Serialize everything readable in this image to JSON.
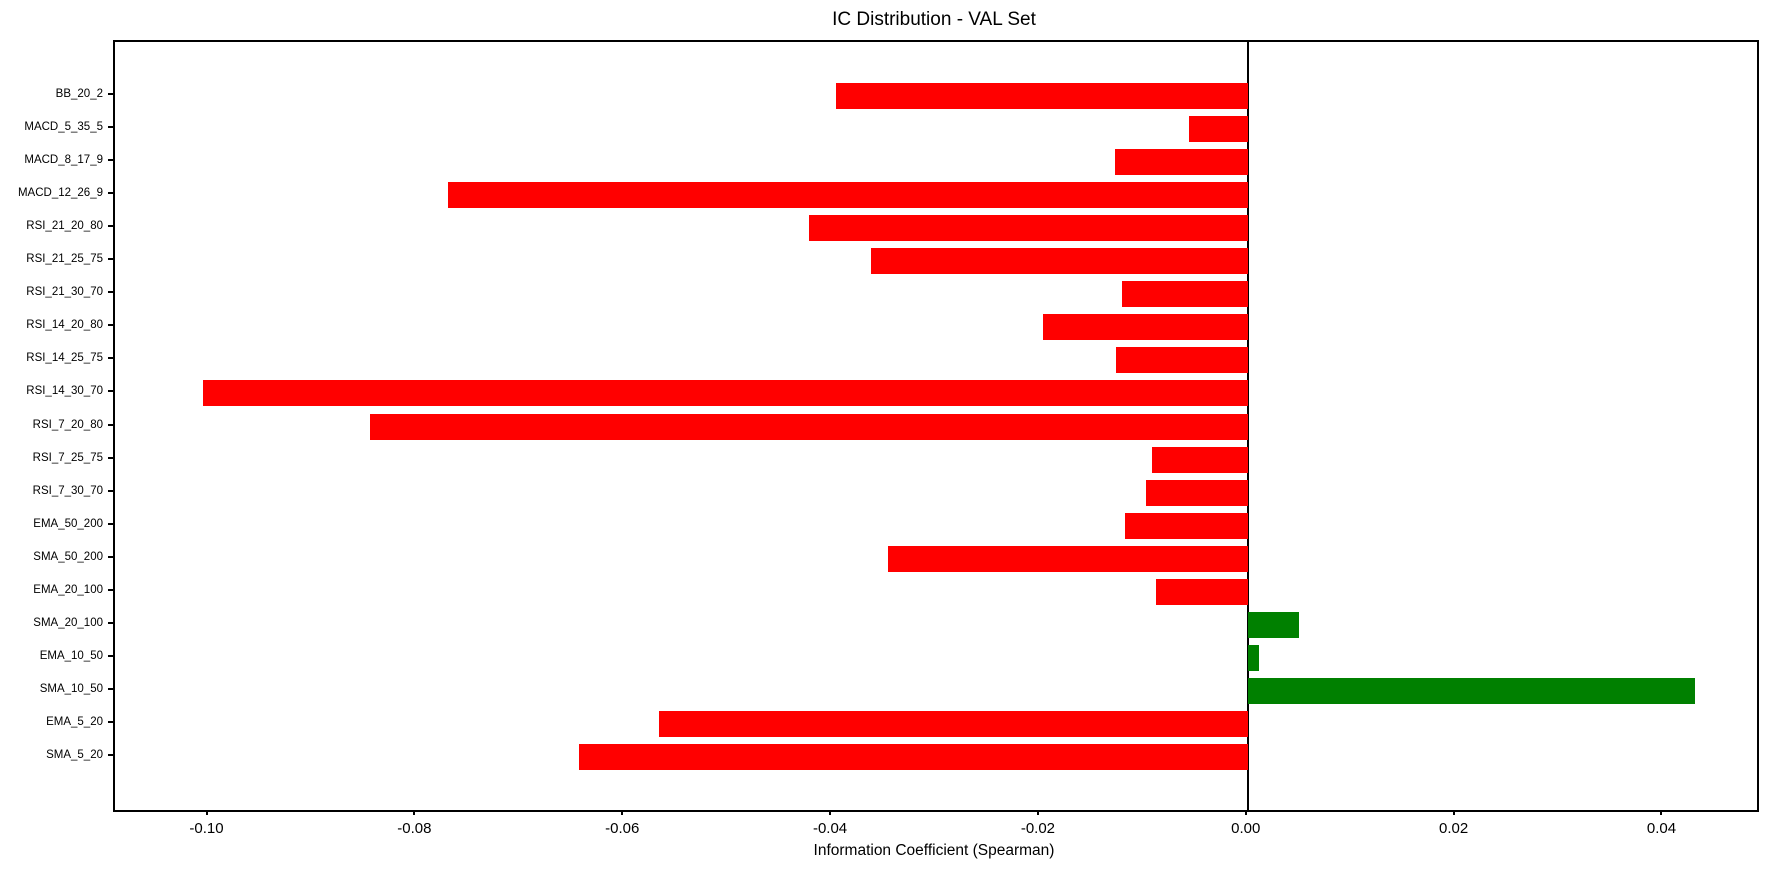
{
  "figure": {
    "title": "IC Distribution - VAL Set",
    "xlabel": "Information Coefficient (Spearman)"
  },
  "chart_data": {
    "type": "bar",
    "orientation": "horizontal",
    "title": "IC Distribution - VAL Set",
    "xlabel": "Information Coefficient (Spearman)",
    "ylabel": "",
    "grid": false,
    "legend": null,
    "categories_top_to_bottom": [
      "BB_20_2",
      "MACD_5_35_5",
      "MACD_8_17_9",
      "MACD_12_26_9",
      "RSI_21_20_80",
      "RSI_21_25_75",
      "RSI_21_30_70",
      "RSI_14_20_80",
      "RSI_14_25_75",
      "RSI_14_30_70",
      "RSI_7_20_80",
      "RSI_7_25_75",
      "RSI_7_30_70",
      "EMA_50_200",
      "SMA_50_200",
      "EMA_20_100",
      "SMA_20_100",
      "EMA_10_50",
      "SMA_10_50",
      "EMA_5_20",
      "SMA_5_20"
    ],
    "values": [
      -0.0396,
      -0.0057,
      -0.0128,
      -0.077,
      -0.0422,
      -0.0363,
      -0.0121,
      -0.0197,
      -0.0127,
      -0.1005,
      -0.0845,
      -0.0092,
      -0.0098,
      -0.0118,
      -0.0346,
      -0.0088,
      0.0049,
      0.0011,
      0.043,
      -0.0567,
      -0.0644
    ],
    "colors": {
      "negative": "#FF0000",
      "positive": "#008000"
    },
    "xlim": [
      -0.109,
      0.049
    ],
    "xticks": [
      -0.1,
      -0.08,
      -0.06,
      -0.04,
      -0.02,
      0.0,
      0.02,
      0.04
    ],
    "xtick_labels": [
      "-0.10",
      "-0.08",
      "-0.06",
      "-0.04",
      "-0.02",
      "0.00",
      "0.02",
      "0.04"
    ],
    "zero_line": true
  }
}
